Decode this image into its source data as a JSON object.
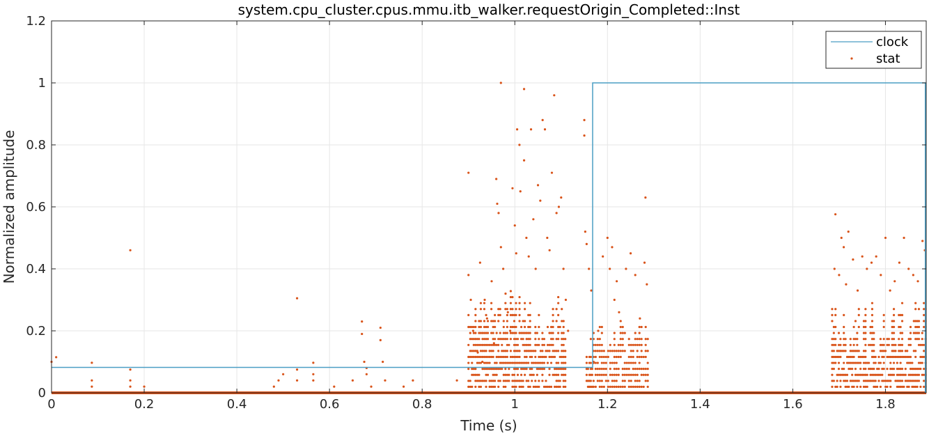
{
  "chart_data": {
    "type": "scatter",
    "title": "system.cpu_cluster.cpus.mmu.itb_walker.requestOrigin_Completed::Inst",
    "xlabel": "Time (s)",
    "ylabel": "Normalized amplitude",
    "xlim": [
      0,
      1.888
    ],
    "ylim": [
      0,
      1.2
    ],
    "xticks": [
      0,
      0.2,
      0.4,
      0.6,
      0.8,
      1,
      1.2,
      1.4,
      1.6,
      1.8
    ],
    "xtick_labels": [
      "0",
      "0.2",
      "0.4",
      "0.6",
      "0.8",
      "1",
      "1.2",
      "1.4",
      "1.6",
      "1.8"
    ],
    "yticks": [
      0,
      0.2,
      0.4,
      0.6,
      0.8,
      1,
      1.2
    ],
    "ytick_labels": [
      "0",
      "0.2",
      "0.4",
      "0.6",
      "0.8",
      "1",
      "1.2"
    ],
    "grid": true,
    "legend_placement": "top-right",
    "colors": {
      "clock": "#4a9ec4",
      "stat": "#d95319",
      "grid": "#e6e6e6",
      "axis": "#262626"
    },
    "series": [
      {
        "name": "clock",
        "kind": "step",
        "points": [
          [
            0,
            0.082
          ],
          [
            1.168,
            0.082
          ],
          [
            1.168,
            1.0
          ],
          [
            1.886,
            1.0
          ],
          [
            1.886,
            0.0
          ]
        ]
      },
      {
        "name": "stat",
        "kind": "scatter",
        "baseline": 0,
        "points": [
          [
            0.0,
            0.1
          ],
          [
            0.01,
            0.115
          ],
          [
            0.087,
            0.097
          ],
          [
            0.087,
            0.04
          ],
          [
            0.087,
            0.02
          ],
          [
            0.17,
            0.46
          ],
          [
            0.17,
            0.075
          ],
          [
            0.17,
            0.04
          ],
          [
            0.17,
            0.02
          ],
          [
            0.2,
            0.02
          ],
          [
            0.48,
            0.02
          ],
          [
            0.49,
            0.04
          ],
          [
            0.5,
            0.06
          ],
          [
            0.53,
            0.305
          ],
          [
            0.53,
            0.075
          ],
          [
            0.53,
            0.04
          ],
          [
            0.565,
            0.097
          ],
          [
            0.565,
            0.06
          ],
          [
            0.565,
            0.04
          ],
          [
            0.61,
            0.02
          ],
          [
            0.65,
            0.04
          ],
          [
            0.67,
            0.23
          ],
          [
            0.67,
            0.19
          ],
          [
            0.675,
            0.1
          ],
          [
            0.68,
            0.08
          ],
          [
            0.68,
            0.06
          ],
          [
            0.69,
            0.02
          ],
          [
            0.71,
            0.21
          ],
          [
            0.71,
            0.17
          ],
          [
            0.715,
            0.1
          ],
          [
            0.72,
            0.04
          ],
          [
            0.76,
            0.02
          ],
          [
            0.78,
            0.04
          ],
          [
            0.875,
            0.04
          ],
          [
            0.9,
            0.71
          ],
          [
            0.9,
            0.38
          ],
          [
            0.905,
            0.3
          ],
          [
            0.91,
            0.2
          ],
          [
            0.92,
            0.13
          ],
          [
            0.925,
            0.42
          ],
          [
            0.93,
            0.1
          ],
          [
            0.935,
            0.3
          ],
          [
            0.94,
            0.24
          ],
          [
            0.95,
            0.36
          ],
          [
            0.955,
            0.16
          ],
          [
            0.96,
            0.69
          ],
          [
            0.962,
            0.61
          ],
          [
            0.965,
            0.58
          ],
          [
            0.97,
            1.0
          ],
          [
            0.97,
            0.47
          ],
          [
            0.975,
            0.4
          ],
          [
            0.98,
            0.32
          ],
          [
            0.985,
            0.26
          ],
          [
            0.99,
            0.2
          ],
          [
            0.995,
            0.66
          ],
          [
            1.0,
            0.54
          ],
          [
            1.003,
            0.45
          ],
          [
            1.005,
            0.85
          ],
          [
            1.01,
            0.8
          ],
          [
            1.012,
            0.65
          ],
          [
            1.02,
            0.98
          ],
          [
            1.02,
            0.75
          ],
          [
            1.025,
            0.5
          ],
          [
            1.03,
            0.44
          ],
          [
            1.035,
            0.85
          ],
          [
            1.04,
            0.56
          ],
          [
            1.045,
            0.4
          ],
          [
            1.05,
            0.67
          ],
          [
            1.055,
            0.62
          ],
          [
            1.06,
            0.88
          ],
          [
            1.065,
            0.85
          ],
          [
            1.07,
            0.5
          ],
          [
            1.075,
            0.46
          ],
          [
            1.08,
            0.71
          ],
          [
            1.085,
            0.96
          ],
          [
            1.09,
            0.58
          ],
          [
            1.095,
            0.6
          ],
          [
            1.1,
            0.63
          ],
          [
            1.105,
            0.4
          ],
          [
            1.11,
            0.3
          ],
          [
            1.115,
            0.2
          ],
          [
            1.15,
            0.88
          ],
          [
            1.15,
            0.83
          ],
          [
            1.152,
            0.52
          ],
          [
            1.155,
            0.48
          ],
          [
            1.16,
            0.4
          ],
          [
            1.165,
            0.33
          ],
          [
            1.17,
            0.1
          ],
          [
            1.18,
            0.2
          ],
          [
            1.19,
            0.44
          ],
          [
            1.2,
            0.5
          ],
          [
            1.205,
            0.4
          ],
          [
            1.21,
            0.47
          ],
          [
            1.215,
            0.3
          ],
          [
            1.22,
            0.36
          ],
          [
            1.225,
            0.26
          ],
          [
            1.24,
            0.4
          ],
          [
            1.25,
            0.45
          ],
          [
            1.26,
            0.38
          ],
          [
            1.27,
            0.24
          ],
          [
            1.28,
            0.42
          ],
          [
            1.282,
            0.63
          ],
          [
            1.285,
            0.35
          ],
          [
            1.69,
            0.4
          ],
          [
            1.692,
            0.576
          ],
          [
            1.7,
            0.38
          ],
          [
            1.705,
            0.5
          ],
          [
            1.71,
            0.47
          ],
          [
            1.715,
            0.35
          ],
          [
            1.72,
            0.52
          ],
          [
            1.73,
            0.43
          ],
          [
            1.74,
            0.33
          ],
          [
            1.75,
            0.44
          ],
          [
            1.76,
            0.4
          ],
          [
            1.77,
            0.42
          ],
          [
            1.78,
            0.44
          ],
          [
            1.79,
            0.38
          ],
          [
            1.8,
            0.5
          ],
          [
            1.81,
            0.33
          ],
          [
            1.82,
            0.36
          ],
          [
            1.83,
            0.42
          ],
          [
            1.84,
            0.5
          ],
          [
            1.85,
            0.4
          ],
          [
            1.86,
            0.38
          ],
          [
            1.87,
            0.36
          ],
          [
            1.88,
            0.49
          ],
          [
            1.885,
            0.46
          ]
        ]
      }
    ]
  }
}
